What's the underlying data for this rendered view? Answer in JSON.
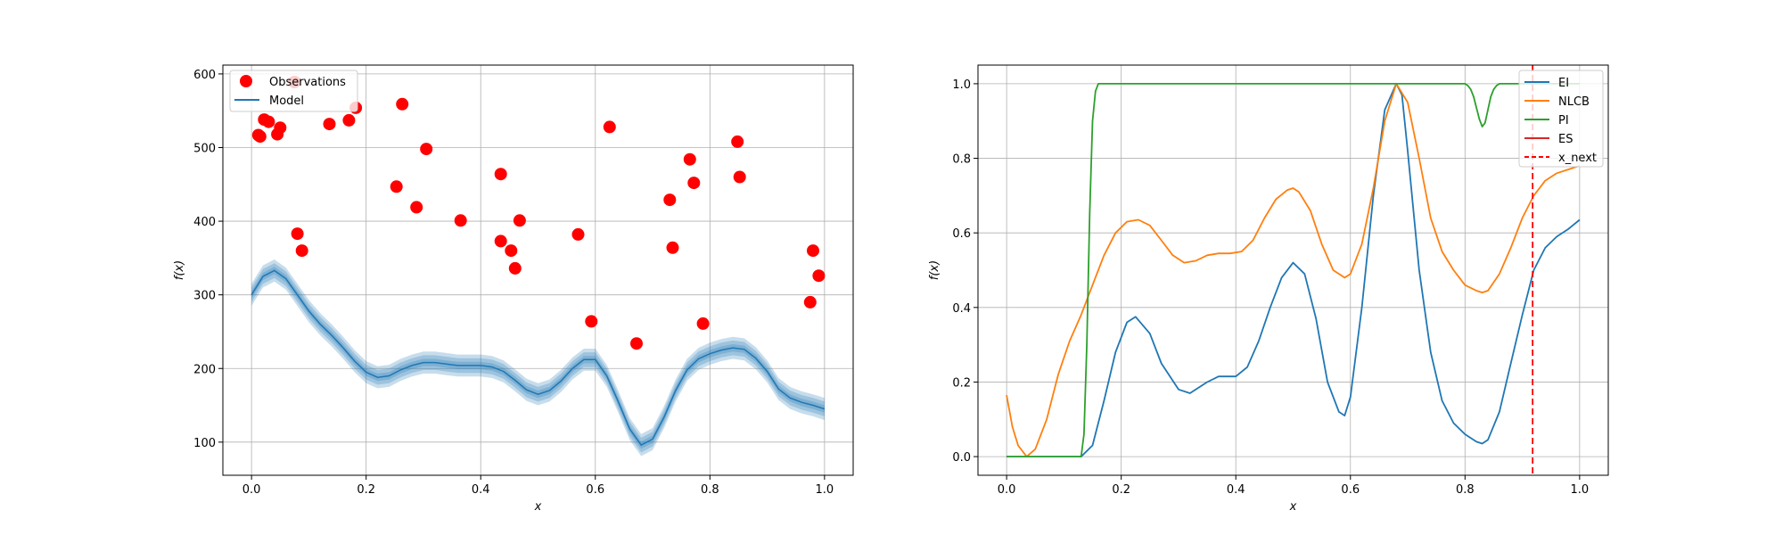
{
  "chart_data": [
    {
      "type": "scatter",
      "panel": "left",
      "xlabel": "x",
      "ylabel": "f(x)",
      "xlim": [
        -0.05,
        1.05
      ],
      "ylim": [
        55,
        612
      ],
      "x_ticks": [
        0.0,
        0.2,
        0.4,
        0.6,
        0.8,
        1.0
      ],
      "x_tick_labels": [
        "0.0",
        "0.2",
        "0.4",
        "0.6",
        "0.8",
        "1.0"
      ],
      "y_ticks": [
        100,
        200,
        300,
        400,
        500,
        600
      ],
      "y_tick_labels": [
        "100",
        "200",
        "300",
        "400",
        "500",
        "600"
      ],
      "grid": true,
      "legend_placement": "top-left",
      "legend": [
        "Observations",
        "Model"
      ],
      "observations": {
        "name": "Observations",
        "color": "#ff0000",
        "points": [
          [
            0.012,
            517
          ],
          [
            0.015,
            515
          ],
          [
            0.022,
            538
          ],
          [
            0.03,
            535
          ],
          [
            0.045,
            518
          ],
          [
            0.05,
            527
          ],
          [
            0.075,
            589
          ],
          [
            0.08,
            383
          ],
          [
            0.088,
            360
          ],
          [
            0.136,
            532
          ],
          [
            0.17,
            537
          ],
          [
            0.182,
            554
          ],
          [
            0.253,
            447
          ],
          [
            0.263,
            559
          ],
          [
            0.288,
            419
          ],
          [
            0.305,
            498
          ],
          [
            0.365,
            401
          ],
          [
            0.435,
            464
          ],
          [
            0.435,
            373
          ],
          [
            0.453,
            360
          ],
          [
            0.46,
            336
          ],
          [
            0.468,
            401
          ],
          [
            0.57,
            382
          ],
          [
            0.593,
            264
          ],
          [
            0.625,
            528
          ],
          [
            0.672,
            234
          ],
          [
            0.73,
            429
          ],
          [
            0.735,
            364
          ],
          [
            0.765,
            484
          ],
          [
            0.772,
            452
          ],
          [
            0.788,
            261
          ],
          [
            0.848,
            508
          ],
          [
            0.852,
            460
          ],
          [
            0.975,
            290
          ],
          [
            0.98,
            360
          ],
          [
            0.99,
            326
          ]
        ]
      },
      "model": {
        "name": "Model",
        "color": "#1f77b4",
        "x": [
          0.0,
          0.02,
          0.04,
          0.06,
          0.08,
          0.1,
          0.12,
          0.14,
          0.16,
          0.18,
          0.2,
          0.22,
          0.24,
          0.26,
          0.28,
          0.3,
          0.32,
          0.34,
          0.36,
          0.38,
          0.4,
          0.42,
          0.44,
          0.46,
          0.48,
          0.5,
          0.52,
          0.54,
          0.56,
          0.58,
          0.6,
          0.62,
          0.64,
          0.66,
          0.68,
          0.7,
          0.72,
          0.74,
          0.76,
          0.78,
          0.8,
          0.82,
          0.84,
          0.86,
          0.88,
          0.9,
          0.92,
          0.94,
          0.96,
          0.98,
          1.0
        ],
        "mean": [
          300,
          325,
          333,
          322,
          300,
          278,
          260,
          245,
          228,
          210,
          195,
          188,
          190,
          198,
          204,
          208,
          208,
          206,
          204,
          204,
          204,
          202,
          196,
          184,
          171,
          165,
          170,
          183,
          200,
          212,
          212,
          190,
          155,
          118,
          96,
          104,
          134,
          170,
          198,
          213,
          220,
          225,
          228,
          226,
          214,
          196,
          172,
          160,
          154,
          150,
          145
        ],
        "confidence_bands_std": 3,
        "std": [
          5,
          5,
          5,
          5,
          5,
          5,
          5,
          5,
          5,
          5,
          5,
          5,
          5,
          5,
          5,
          5,
          5,
          5,
          5,
          5,
          5,
          5,
          5,
          5,
          5,
          5,
          5,
          5,
          5,
          5,
          5,
          5,
          5,
          5,
          5,
          5,
          5,
          5,
          5,
          5,
          5,
          5,
          5,
          5,
          5,
          5,
          5,
          5,
          5,
          5,
          5
        ]
      }
    },
    {
      "type": "line",
      "panel": "right",
      "xlabel": "x",
      "ylabel": "f(x)",
      "xlim": [
        -0.05,
        1.05
      ],
      "ylim": [
        -0.05,
        1.05
      ],
      "x_ticks": [
        0.0,
        0.2,
        0.4,
        0.6,
        0.8,
        1.0
      ],
      "x_tick_labels": [
        "0.0",
        "0.2",
        "0.4",
        "0.6",
        "0.8",
        "1.0"
      ],
      "y_ticks": [
        0.0,
        0.2,
        0.4,
        0.6,
        0.8,
        1.0
      ],
      "y_tick_labels": [
        "0.0",
        "0.2",
        "0.4",
        "0.6",
        "0.8",
        "1.0"
      ],
      "grid": true,
      "legend_placement": "top-right",
      "legend": [
        "EI",
        "NLCB",
        "PI",
        "ES",
        "x_next"
      ],
      "series": [
        {
          "name": "EI",
          "color": "#1f77b4",
          "x": [
            0.0,
            0.13,
            0.15,
            0.17,
            0.19,
            0.21,
            0.225,
            0.25,
            0.27,
            0.3,
            0.32,
            0.35,
            0.37,
            0.4,
            0.42,
            0.44,
            0.46,
            0.48,
            0.5,
            0.52,
            0.54,
            0.56,
            0.58,
            0.59,
            0.6,
            0.62,
            0.64,
            0.66,
            0.68,
            0.69,
            0.7,
            0.72,
            0.74,
            0.76,
            0.78,
            0.8,
            0.82,
            0.83,
            0.84,
            0.86,
            0.88,
            0.9,
            0.92,
            0.94,
            0.96,
            0.98,
            1.0
          ],
          "y": [
            0.0,
            0.0,
            0.03,
            0.15,
            0.28,
            0.36,
            0.375,
            0.33,
            0.25,
            0.18,
            0.17,
            0.2,
            0.215,
            0.215,
            0.24,
            0.31,
            0.4,
            0.48,
            0.52,
            0.49,
            0.37,
            0.2,
            0.12,
            0.11,
            0.16,
            0.4,
            0.7,
            0.93,
            1.0,
            0.97,
            0.82,
            0.5,
            0.28,
            0.15,
            0.09,
            0.06,
            0.04,
            0.035,
            0.045,
            0.12,
            0.25,
            0.38,
            0.5,
            0.56,
            0.59,
            0.61,
            0.635
          ]
        },
        {
          "name": "NLCB",
          "color": "#ff7f0e",
          "x": [
            0.0,
            0.01,
            0.02,
            0.035,
            0.05,
            0.07,
            0.09,
            0.11,
            0.13,
            0.15,
            0.17,
            0.19,
            0.21,
            0.23,
            0.25,
            0.27,
            0.29,
            0.31,
            0.33,
            0.35,
            0.37,
            0.39,
            0.41,
            0.43,
            0.45,
            0.47,
            0.49,
            0.5,
            0.51,
            0.53,
            0.55,
            0.57,
            0.59,
            0.6,
            0.62,
            0.64,
            0.66,
            0.68,
            0.7,
            0.72,
            0.74,
            0.76,
            0.78,
            0.8,
            0.82,
            0.83,
            0.84,
            0.86,
            0.88,
            0.9,
            0.92,
            0.94,
            0.96,
            0.98,
            1.0
          ],
          "y": [
            0.165,
            0.08,
            0.03,
            0.0,
            0.02,
            0.1,
            0.22,
            0.31,
            0.38,
            0.46,
            0.54,
            0.6,
            0.63,
            0.635,
            0.62,
            0.58,
            0.54,
            0.52,
            0.525,
            0.54,
            0.545,
            0.545,
            0.55,
            0.58,
            0.64,
            0.69,
            0.715,
            0.72,
            0.71,
            0.66,
            0.57,
            0.5,
            0.48,
            0.49,
            0.57,
            0.72,
            0.9,
            1.0,
            0.95,
            0.8,
            0.64,
            0.55,
            0.5,
            0.46,
            0.445,
            0.44,
            0.445,
            0.49,
            0.56,
            0.64,
            0.7,
            0.74,
            0.76,
            0.77,
            0.78
          ]
        },
        {
          "name": "PI",
          "color": "#2ca02c",
          "x": [
            0.0,
            0.13,
            0.135,
            0.14,
            0.145,
            0.15,
            0.155,
            0.16,
            0.8,
            0.805,
            0.81,
            0.815,
            0.82,
            0.825,
            0.83,
            0.835,
            0.84,
            0.845,
            0.85,
            0.855,
            0.86,
            1.0
          ],
          "y": [
            0.0,
            0.0,
            0.06,
            0.3,
            0.65,
            0.9,
            0.98,
            1.0,
            1.0,
            0.995,
            0.985,
            0.965,
            0.935,
            0.905,
            0.885,
            0.895,
            0.93,
            0.965,
            0.985,
            0.995,
            1.0,
            1.0
          ]
        },
        {
          "name": "ES",
          "color": "#d62728",
          "x": [],
          "y": []
        }
      ],
      "vline": {
        "name": "x_next",
        "x": 0.918,
        "color": "#ff0000",
        "style": "dashed"
      }
    }
  ]
}
